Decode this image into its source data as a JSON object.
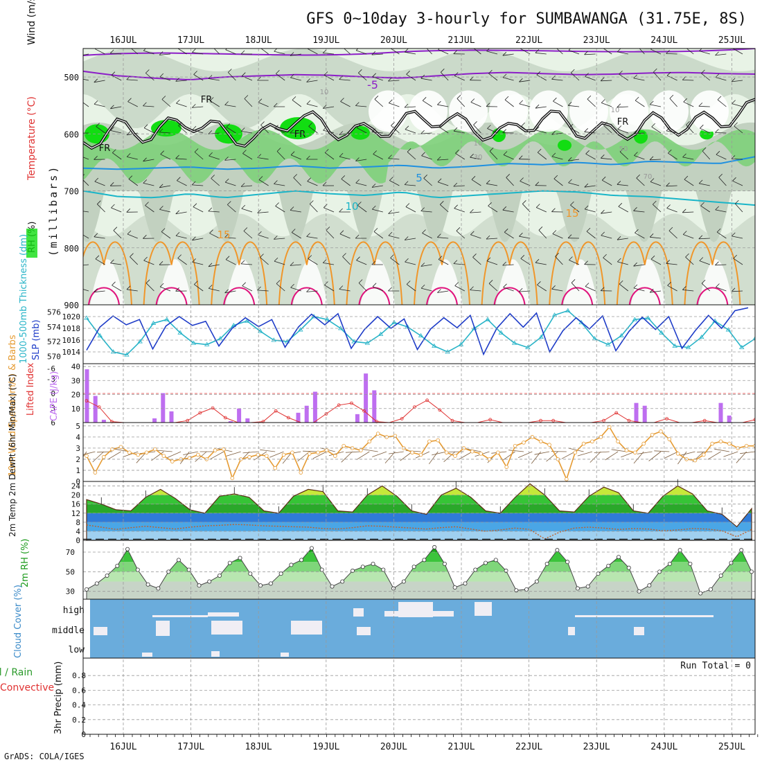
{
  "title": "GFS 0~10day 3-hourly for SUMBAWANGA (31.75E, 8S)",
  "credit": "GrADS: COLA/IGES",
  "colors": {
    "rh_light": "#e8f3e6",
    "rh_mid": "#c2d1c0",
    "rh_green": "#7ed07a",
    "rh_bright": "#12dd12",
    "temp_purple": "#8c1ec8",
    "temp_blue": "#1e90e0",
    "temp_cyan": "#19b5c8",
    "temp_orange": "#f0962a",
    "temp_magenta": "#e0147d",
    "slp": "#1e3cc8",
    "thickness": "#28b4c8",
    "cape": "#be6ef0",
    "lifted_index": "#e03232",
    "wind10m": "#e69b32",
    "barb": "#7a5a3a",
    "cloud_fill": "#6aacdc",
    "cloud_white": "#f0eef4",
    "rh2m_fill": "#31c431",
    "grid": "#9a9a9a"
  },
  "chart_data": [
    {
      "panel": "upper_air",
      "type": "heatmap",
      "ylabel_parts": [
        "Wind (m/s)",
        "Temperature (°C)",
        "RH (%)"
      ],
      "ylabel_units": "(millibars)",
      "y_ticks": [
        500,
        600,
        700,
        800,
        900
      ],
      "ylim": [
        900,
        450
      ],
      "x_ticks": [
        "16JUL",
        "17JUL",
        "18JUL",
        "19JUL",
        "20JUL",
        "21JUL",
        "22JUL",
        "23JUL",
        "24JUL",
        "25JUL"
      ],
      "contour_labels": [
        "-5",
        "FR",
        "5",
        "10",
        "15",
        "10",
        "30",
        "50",
        "70"
      ],
      "isotherms": [
        {
          "label": "-5",
          "levels": [
            490,
            498,
            502,
            505,
            500,
            498,
            496,
            497,
            500,
            502,
            498,
            494,
            492,
            494,
            496,
            495,
            493,
            492,
            494,
            495
          ]
        },
        {
          "label": "5",
          "levels": [
            660,
            662,
            660,
            658,
            662,
            660,
            656,
            660,
            658,
            655,
            660,
            657,
            652,
            654,
            650,
            654,
            648,
            650,
            652,
            640
          ]
        },
        {
          "label": "10",
          "levels": [
            700,
            710,
            712,
            705,
            712,
            706,
            700,
            705,
            708,
            702,
            712,
            708,
            704,
            700,
            702,
            708,
            710,
            715,
            720,
            725
          ]
        },
        {
          "label": "FR",
          "levels": [
            615,
            590,
            600,
            575,
            600,
            610,
            568,
            590,
            600,
            580,
            570,
            590,
            600,
            568,
            590,
            600,
            580,
            585,
            575,
            555
          ]
        }
      ]
    },
    {
      "panel": "pressure",
      "type": "line",
      "ylabel_left": "1000-500mb Thickness (dm)",
      "ylabel_right": "SLP (mb)",
      "y_ticks_left": [
        570,
        572,
        574,
        576
      ],
      "y_ticks_right": [
        1014,
        1016,
        1018,
        1020
      ],
      "series": [
        {
          "name": "SLP (mb)",
          "axis": "right",
          "values": [
            1014.3,
            1018.2,
            1020.1,
            1018.6,
            1019.5,
            1014.5,
            1018.4,
            1020.0,
            1018.5,
            1019.2,
            1015.0,
            1018.0,
            1019.8,
            1018.3,
            1019.5,
            1014.8,
            1018.2,
            1020.4,
            1018.6,
            1020.5,
            1014.6,
            1017.8,
            1020.0,
            1018.0,
            1019.6,
            1014.4,
            1017.9,
            1019.8,
            1018.1,
            1020.2,
            1013.6,
            1018.0,
            1020.5,
            1018.2,
            1020.6,
            1014.0,
            1017.6,
            1019.8,
            1017.9,
            1020.1,
            1014.2,
            1017.5,
            1019.9,
            1017.8,
            1020.0,
            1014.6,
            1017.6,
            1020.2,
            1018.0,
            1021.0,
            1021.5
          ]
        },
        {
          "name": "1000-500mb Thickness (dm)",
          "axis": "left",
          "values": [
            575.2,
            572.8,
            570.6,
            570.2,
            572.0,
            574.5,
            575.0,
            573.2,
            571.8,
            571.6,
            572.4,
            574.2,
            574.8,
            573.4,
            572.2,
            572.0,
            573.6,
            575.4,
            575.0,
            573.8,
            572.0,
            571.8,
            573.0,
            574.6,
            574.0,
            572.8,
            571.4,
            570.6,
            571.6,
            573.8,
            575.0,
            573.2,
            571.8,
            571.2,
            572.6,
            575.6,
            576.2,
            574.6,
            572.4,
            571.6,
            572.8,
            575.0,
            575.2,
            573.2,
            571.4,
            571.2,
            572.6,
            574.8,
            573.6,
            571.2,
            572.4
          ]
        }
      ]
    },
    {
      "panel": "stability",
      "type": "bar",
      "ylabel_left": "Lifted Index",
      "ylabel_right": "CAPE (J/kg)",
      "y_ticks_left": [
        "-6",
        "-3",
        "0",
        "3",
        "6"
      ],
      "y_ticks_right": [
        10,
        20,
        30,
        40
      ],
      "series": [
        {
          "name": "CAPE (J/kg)",
          "values": [
            38,
            19,
            2,
            0,
            0,
            0,
            0,
            0,
            3,
            21,
            8,
            0,
            0,
            0,
            0,
            0,
            0,
            1,
            10,
            3,
            0,
            0,
            0,
            0,
            0,
            7,
            12,
            22,
            0,
            0,
            0,
            0,
            6,
            35,
            23,
            0,
            0,
            0,
            0,
            0,
            0,
            0,
            0,
            0,
            0,
            0,
            0,
            0,
            0,
            0,
            0,
            0,
            0,
            0,
            0,
            0,
            0,
            0,
            0,
            0,
            0,
            0,
            0,
            0,
            0,
            14,
            12,
            0,
            0,
            0,
            0,
            0,
            0,
            0,
            0,
            14,
            5,
            0,
            0,
            0
          ]
        },
        {
          "name": "Lifted Index",
          "values": [
            1.5,
            2.8,
            5.8,
            6,
            6,
            6,
            6,
            6,
            5.6,
            4.0,
            3.0,
            5.0,
            6,
            6,
            5.8,
            3.6,
            5.0,
            6,
            6,
            4.2,
            2.4,
            2.0,
            3.6,
            5.8,
            6,
            5.2,
            2.8,
            1.4,
            3.4,
            5.6,
            6,
            6,
            5.4,
            6,
            6,
            6,
            5.6,
            5.6,
            6,
            6,
            6,
            5.6,
            4.0,
            5.6,
            6,
            6,
            5.2,
            6,
            6,
            5.6,
            6,
            6,
            6,
            5.4
          ]
        }
      ]
    },
    {
      "panel": "wind10m",
      "type": "line",
      "ylabel": "10m Wind Speed (m/s) & Barbs",
      "y_ticks": [
        0,
        1,
        2,
        3,
        4,
        5
      ],
      "series": [
        {
          "name": "10m Wind Speed (m/s)",
          "values": [
            2.3,
            0.8,
            2.2,
            2.9,
            3.1,
            2.6,
            2.4,
            2.6,
            2.9,
            2.3,
            1.8,
            2.0,
            2.1,
            2.4,
            2.0,
            2.8,
            2.9,
            0.3,
            2.0,
            2.2,
            2.4,
            2.3,
            1.2,
            2.4,
            2.6,
            0.8,
            2.5,
            2.6,
            2.8,
            2.3,
            3.2,
            3.0,
            2.8,
            3.6,
            4.3,
            4.0,
            4.1,
            3.0,
            2.6,
            2.4,
            3.6,
            3.7,
            2.6,
            2.3,
            3.0,
            2.7,
            2.5,
            2.0,
            2.6,
            1.3,
            3.2,
            3.5,
            4.0,
            3.6,
            3.3,
            2.0,
            0.2,
            2.6,
            3.4,
            3.6,
            4.0,
            4.9,
            3.6,
            2.8,
            2.6,
            3.4,
            4.2,
            4.5,
            3.8,
            2.5,
            2.0,
            1.9,
            2.4,
            3.4,
            3.6,
            3.4,
            3.0,
            3.2,
            3.2
          ]
        }
      ]
    },
    {
      "panel": "temperature",
      "type": "area",
      "ylabel": "2m Temp 2m DewPt (6hr Min/Max) (°C)",
      "y_ticks": [
        0,
        4,
        8,
        12,
        16,
        20,
        24
      ],
      "series": [
        {
          "name": "2m Temp",
          "values": [
            18.0,
            16.0,
            13.5,
            13.0,
            19.0,
            22.5,
            18.5,
            13.5,
            12.0,
            19.5,
            20.5,
            19.0,
            13.0,
            12.0,
            19.5,
            22.5,
            21.5,
            13.0,
            12.5,
            20.0,
            24.0,
            19.5,
            13.0,
            11.5,
            20.0,
            23.0,
            19.0,
            13.0,
            12.0,
            19.0,
            25.0,
            20.0,
            13.0,
            12.5,
            19.5,
            23.5,
            21.0,
            13.0,
            12.0,
            19.5,
            24.0,
            20.5,
            13.0,
            11.5,
            6.0,
            14.0
          ]
        },
        {
          "name": "2m DewPt",
          "values": [
            6.8,
            5.8,
            4.8,
            5.6,
            6.2,
            5.6,
            5.0,
            5.8,
            6.4,
            6.6,
            7.0,
            6.8,
            6.4,
            6.2,
            6.0,
            5.8,
            5.2,
            5.0,
            5.6,
            6.4,
            6.2,
            5.8,
            5.4,
            5.0,
            5.6,
            6.0,
            5.0,
            4.0,
            4.6,
            5.4,
            4.8,
            0.6,
            3.6,
            5.4,
            5.8,
            5.4,
            4.8,
            5.2,
            5.0,
            4.2,
            4.6,
            5.2,
            5.0,
            4.2,
            1.6,
            4.8
          ]
        }
      ]
    },
    {
      "panel": "rh2m",
      "type": "area",
      "ylabel": "2m RH (%)",
      "y_ticks": [
        30,
        50,
        70
      ],
      "series": [
        {
          "name": "2m RH (%)",
          "values": [
            32,
            38,
            46,
            56,
            73,
            52,
            37,
            33,
            50,
            62,
            52,
            36,
            40,
            46,
            59,
            64,
            48,
            36,
            38,
            48,
            57,
            62,
            74,
            52,
            35,
            40,
            51,
            55,
            58,
            52,
            33,
            40,
            55,
            62,
            75,
            58,
            34,
            38,
            52,
            59,
            62,
            51,
            31,
            32,
            40,
            58,
            72,
            60,
            33,
            35,
            48,
            56,
            65,
            54,
            30,
            36,
            50,
            58,
            72,
            58,
            28,
            32,
            46,
            59,
            72,
            50
          ]
        }
      ]
    },
    {
      "panel": "cloud",
      "type": "heatmap",
      "ylabel": "Cloud Cover (%)",
      "y_labels": [
        "high",
        "middle",
        "low"
      ]
    },
    {
      "panel": "precip",
      "type": "bar",
      "ylabel_left": "Total / Rain",
      "ylabel_left2": "Convective",
      "ylabel": "3hr Precip (mm)",
      "y_ticks": [
        "0",
        "0.2",
        "0.4",
        "0.6",
        "0.8"
      ],
      "ylim": [
        0,
        1.0
      ],
      "annotation": "Run Total = 0",
      "values": []
    }
  ]
}
